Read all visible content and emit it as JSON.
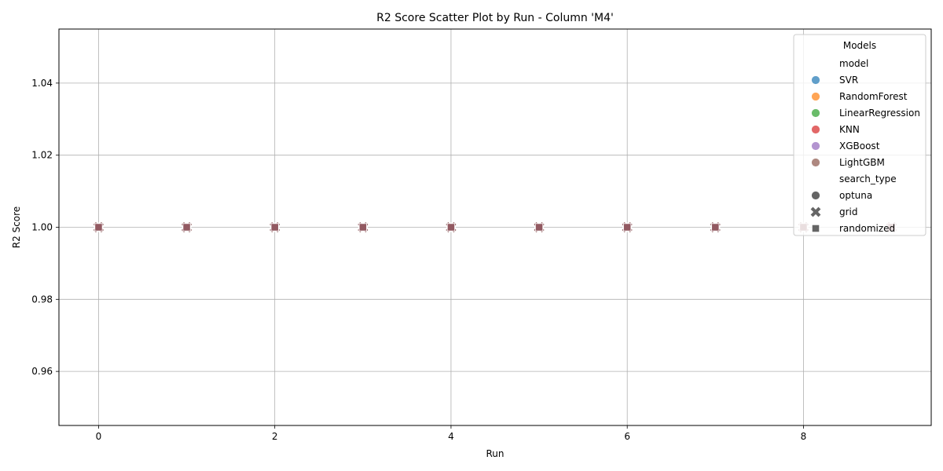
{
  "chart_data": {
    "type": "scatter",
    "title": "R2 Score Scatter Plot by Run - Column 'M4'",
    "xlabel": "Run",
    "ylabel": "R2 Score",
    "xlim": [
      -0.45,
      9.45
    ],
    "ylim": [
      0.945,
      1.055
    ],
    "xticks": [
      0,
      2,
      4,
      6,
      8
    ],
    "xtick_labels": [
      "0",
      "2",
      "4",
      "6",
      "8"
    ],
    "yticks": [
      0.96,
      0.98,
      1.0,
      1.02,
      1.04
    ],
    "ytick_labels": [
      "0.96",
      "0.98",
      "1.00",
      "1.02",
      "1.04"
    ],
    "grid": true,
    "legend": {
      "title": "Models",
      "placement": "top-right",
      "hue_title": "model",
      "style_title": "search_type"
    },
    "series": [
      {
        "name": "SVR",
        "color": "#1f77b4"
      },
      {
        "name": "RandomForest",
        "color": "#ff7f0e"
      },
      {
        "name": "LinearRegression",
        "color": "#2ca02c"
      },
      {
        "name": "KNN",
        "color": "#d62728"
      },
      {
        "name": "XGBoost",
        "color": "#9467bd"
      },
      {
        "name": "LightGBM",
        "color": "#8c564b"
      }
    ],
    "markers": [
      {
        "name": "optuna",
        "shape": "circle"
      },
      {
        "name": "grid",
        "shape": "x"
      },
      {
        "name": "randomized",
        "shape": "square"
      }
    ],
    "x": [
      0,
      1,
      2,
      3,
      4,
      5,
      6,
      7,
      8,
      9
    ],
    "y": [
      1.0,
      1.0,
      1.0,
      1.0,
      1.0,
      1.0,
      1.0,
      1.0,
      1.0,
      1.0
    ]
  }
}
